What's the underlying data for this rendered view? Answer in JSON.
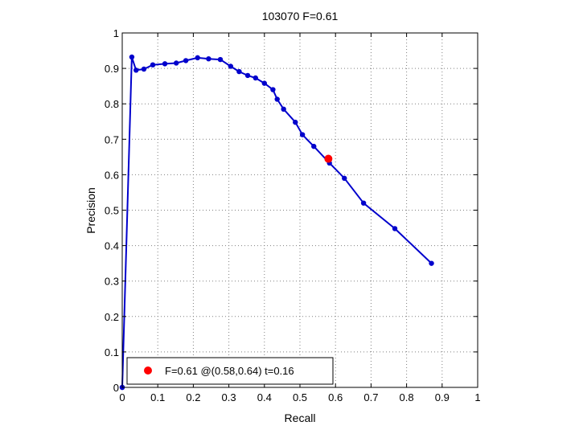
{
  "chart_data": {
    "type": "line",
    "title": "103070 F=0.61",
    "xlabel": "Recall",
    "ylabel": "Precision",
    "xlim": [
      0,
      1
    ],
    "ylim": [
      0,
      1
    ],
    "grid": true,
    "xticks": [
      0,
      0.1,
      0.2,
      0.3,
      0.4,
      0.5,
      0.6,
      0.7,
      0.8,
      0.9,
      1
    ],
    "yticks": [
      0,
      0.1,
      0.2,
      0.3,
      0.4,
      0.5,
      0.6,
      0.7,
      0.8,
      0.9,
      1
    ],
    "xtick_labels": [
      "0",
      "0.1",
      "0.2",
      "0.3",
      "0.4",
      "0.5",
      "0.6",
      "0.7",
      "0.8",
      "0.9",
      "1"
    ],
    "ytick_labels": [
      "0",
      "0.1",
      "0.2",
      "0.3",
      "0.4",
      "0.5",
      "0.6",
      "0.7",
      "0.8",
      "0.9",
      "1"
    ],
    "series": [
      {
        "color": "#0000cc",
        "marker": "dot",
        "x": [
          0.87,
          0.767,
          0.679,
          0.625,
          0.583,
          0.539,
          0.507,
          0.487,
          0.454,
          0.436,
          0.424,
          0.4,
          0.375,
          0.353,
          0.329,
          0.305,
          0.276,
          0.243,
          0.212,
          0.179,
          0.152,
          0.12,
          0.086,
          0.061,
          0.039,
          0.027,
          0.0,
          0.0
        ],
        "y": [
          0.35,
          0.448,
          0.52,
          0.59,
          0.633,
          0.68,
          0.713,
          0.748,
          0.785,
          0.813,
          0.84,
          0.858,
          0.873,
          0.88,
          0.891,
          0.906,
          0.925,
          0.927,
          0.93,
          0.922,
          0.915,
          0.913,
          0.91,
          0.898,
          0.895,
          0.932,
          0.0,
          0.0
        ]
      }
    ],
    "highlight": {
      "x": 0.58,
      "y": 0.645,
      "color": "#ff0000"
    },
    "legend": {
      "position": "bottom-left",
      "label": "F=0.61 @(0.58,0.64) t=0.16",
      "marker_color": "#ff0000"
    }
  }
}
